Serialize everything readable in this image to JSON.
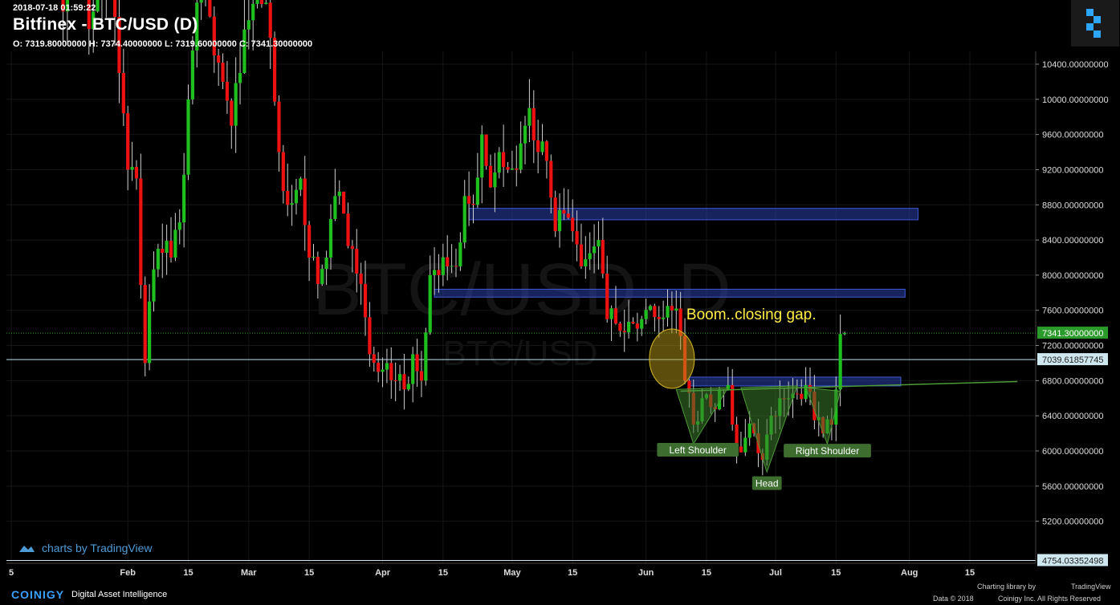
{
  "header": {
    "timestamp": "2018-07-18 01:59:22",
    "title": "Bitfinex - BTC/USD (D)",
    "ohlc": "O: 7319.80000000 H: 7374.40000000 L: 7319.60000000 C: 7341.30000000"
  },
  "watermark": {
    "big": "BTC/USD, D",
    "small": "BTC/USD"
  },
  "annotations": {
    "gap_text": "Boom..closing gap.",
    "left_shoulder": "Left Shoulder",
    "head": "Head",
    "right_shoulder": "Right Shoulder"
  },
  "price_labels": {
    "last": "7341.30000000",
    "line": "7039.61857745",
    "low": "4754.03352498"
  },
  "branding": {
    "tv": "charts by TradingView",
    "footer_brand": "COINIGY",
    "footer_tag": "Digital Asset Intelligence",
    "charting_library": "Charting library by",
    "tv_short": "TradingView",
    "copyright": "Data © 2018",
    "copyright2": "Coinigy Inc. All Rights Reserved"
  },
  "colors": {
    "up": "#1fbf1f",
    "down": "#ee1111",
    "zone": "#2a3fa8",
    "pattern": "#3a7a2a",
    "gap": "#b89a18",
    "last_label": "#2a9a2a"
  },
  "chart_data": {
    "type": "candlestick",
    "title": "Bitfinex - BTC/USD (D)",
    "y_ticks": [
      10400,
      10000,
      9600,
      9200,
      8800,
      8400,
      8000,
      7600,
      7200,
      6800,
      6400,
      6000,
      5600,
      5200
    ],
    "y_tick_labels": [
      "10400.00000000",
      "10000.00000000",
      "9600.00000000",
      "9200.00000000",
      "8800.00000000",
      "8400.00000000",
      "8000.00000000",
      "7600.00000000",
      "7200.00000000",
      "6800.00000000",
      "6400.00000000",
      "6000.00000000",
      "5600.00000000",
      "5200.00000000"
    ],
    "ylim": [
      4720,
      10540
    ],
    "x_ticks": [
      "2018-01-05",
      "2018-02-01",
      "2018-02-15",
      "2018-03-01",
      "2018-03-15",
      "2018-04-01",
      "2018-04-15",
      "2018-05-01",
      "2018-05-15",
      "2018-06-01",
      "2018-06-15",
      "2018-07-01",
      "2018-07-15",
      "2018-08-01",
      "2018-08-15"
    ],
    "x_tick_labels": [
      "5",
      "Feb",
      "15",
      "Mar",
      "15",
      "Apr",
      "15",
      "May",
      "15",
      "Jun",
      "15",
      "Jul",
      "15",
      "Aug",
      "15"
    ],
    "zones": [
      {
        "from": "2018-04-21",
        "to": "2018-08-03",
        "low": 8630,
        "high": 8760
      },
      {
        "from": "2018-04-13",
        "to": "2018-07-31",
        "low": 7750,
        "high": 7840
      },
      {
        "from": "2018-06-11",
        "to": "2018-07-30",
        "low": 6740,
        "high": 6840
      }
    ],
    "neckline": {
      "from": {
        "x": "2018-06-09",
        "y": 6680
      },
      "to": {
        "x": "2018-08-26",
        "y": 6790
      }
    },
    "gap_ellipse": {
      "x": "2018-06-07",
      "y": 7050
    },
    "last_price": 7341.3,
    "hline": 7039.61857745,
    "low_line": 4754.03352498,
    "pattern": {
      "left_shoulder": [
        {
          "x": "2018-06-08",
          "y": 6700
        },
        {
          "x": "2018-06-12",
          "y": 6080
        },
        {
          "x": "2018-06-20",
          "y": 6720
        }
      ],
      "head": [
        {
          "x": "2018-06-23",
          "y": 6720
        },
        {
          "x": "2018-06-29",
          "y": 5760
        },
        {
          "x": "2018-07-06",
          "y": 6740
        }
      ],
      "right_shoulder": [
        {
          "x": "2018-07-08",
          "y": 6720
        },
        {
          "x": "2018-07-13",
          "y": 6080
        },
        {
          "x": "2018-07-16",
          "y": 6680
        }
      ]
    },
    "anchors": [
      {
        "d": "2018-01-05",
        "c": 15000
      },
      {
        "d": "2018-01-07",
        "c": 16500
      },
      {
        "d": "2018-01-09",
        "c": 14900
      },
      {
        "d": "2018-01-12",
        "c": 13800
      },
      {
        "d": "2018-01-14",
        "c": 13600
      },
      {
        "d": "2018-01-17",
        "c": 11000
      },
      {
        "d": "2018-01-20",
        "c": 12800
      },
      {
        "d": "2018-01-23",
        "c": 10800
      },
      {
        "d": "2018-01-26",
        "c": 11200
      },
      {
        "d": "2018-01-28",
        "c": 11700
      },
      {
        "d": "2018-01-30",
        "c": 10300
      },
      {
        "d": "2018-02-01",
        "c": 9200
      },
      {
        "d": "2018-02-03",
        "c": 9100
      },
      {
        "d": "2018-02-05",
        "c": 7000
      },
      {
        "d": "2018-02-06",
        "c": 7700
      },
      {
        "d": "2018-02-08",
        "c": 8300
      },
      {
        "d": "2018-02-11",
        "c": 8200
      },
      {
        "d": "2018-02-13",
        "c": 8600
      },
      {
        "d": "2018-02-15",
        "c": 10000
      },
      {
        "d": "2018-02-17",
        "c": 11100
      },
      {
        "d": "2018-02-19",
        "c": 11200
      },
      {
        "d": "2018-02-21",
        "c": 10500
      },
      {
        "d": "2018-02-23",
        "c": 10200
      },
      {
        "d": "2018-02-25",
        "c": 9700
      },
      {
        "d": "2018-02-27",
        "c": 10300
      },
      {
        "d": "2018-03-01",
        "c": 10900
      },
      {
        "d": "2018-03-03",
        "c": 11400
      },
      {
        "d": "2018-03-06",
        "c": 10700
      },
      {
        "d": "2018-03-08",
        "c": 9400
      },
      {
        "d": "2018-03-10",
        "c": 8800
      },
      {
        "d": "2018-03-13",
        "c": 9100
      },
      {
        "d": "2018-03-15",
        "c": 8200
      },
      {
        "d": "2018-03-17",
        "c": 7900
      },
      {
        "d": "2018-03-19",
        "c": 8200
      },
      {
        "d": "2018-03-21",
        "c": 8900
      },
      {
        "d": "2018-03-23",
        "c": 8700
      },
      {
        "d": "2018-03-25",
        "c": 8300
      },
      {
        "d": "2018-03-27",
        "c": 7900
      },
      {
        "d": "2018-03-29",
        "c": 7100
      },
      {
        "d": "2018-03-31",
        "c": 6900
      },
      {
        "d": "2018-04-02",
        "c": 7000
      },
      {
        "d": "2018-04-04",
        "c": 6800
      },
      {
        "d": "2018-04-06",
        "c": 6700
      },
      {
        "d": "2018-04-08",
        "c": 7100
      },
      {
        "d": "2018-04-10",
        "c": 6800
      },
      {
        "d": "2018-04-12",
        "c": 8000
      },
      {
        "d": "2018-04-14",
        "c": 8000
      },
      {
        "d": "2018-04-16",
        "c": 8100
      },
      {
        "d": "2018-04-18",
        "c": 8100
      },
      {
        "d": "2018-04-20",
        "c": 8900
      },
      {
        "d": "2018-04-22",
        "c": 8800
      },
      {
        "d": "2018-04-24",
        "c": 9600
      },
      {
        "d": "2018-04-26",
        "c": 9000
      },
      {
        "d": "2018-04-28",
        "c": 9400
      },
      {
        "d": "2018-04-30",
        "c": 9200
      },
      {
        "d": "2018-05-02",
        "c": 9200
      },
      {
        "d": "2018-05-04",
        "c": 9700
      },
      {
        "d": "2018-05-05",
        "c": 9900
      },
      {
        "d": "2018-05-07",
        "c": 9400
      },
      {
        "d": "2018-05-09",
        "c": 9300
      },
      {
        "d": "2018-05-11",
        "c": 8500
      },
      {
        "d": "2018-05-13",
        "c": 8700
      },
      {
        "d": "2018-05-15",
        "c": 8500
      },
      {
        "d": "2018-05-17",
        "c": 8100
      },
      {
        "d": "2018-05-19",
        "c": 8250
      },
      {
        "d": "2018-05-21",
        "c": 8400
      },
      {
        "d": "2018-05-23",
        "c": 7500
      },
      {
        "d": "2018-05-25",
        "c": 7450
      },
      {
        "d": "2018-05-27",
        "c": 7350
      },
      {
        "d": "2018-05-29",
        "c": 7450
      },
      {
        "d": "2018-05-31",
        "c": 7500
      },
      {
        "d": "2018-06-02",
        "c": 7650
      },
      {
        "d": "2018-06-04",
        "c": 7500
      },
      {
        "d": "2018-06-06",
        "c": 7650
      },
      {
        "d": "2018-06-08",
        "c": 7620
      },
      {
        "d": "2018-06-10",
        "c": 6800
      },
      {
        "d": "2018-06-12",
        "c": 6300
      },
      {
        "d": "2018-06-14",
        "c": 6600
      },
      {
        "d": "2018-06-16",
        "c": 6500
      },
      {
        "d": "2018-06-18",
        "c": 6700
      },
      {
        "d": "2018-06-20",
        "c": 6750
      },
      {
        "d": "2018-06-22",
        "c": 6050
      },
      {
        "d": "2018-06-24",
        "c": 6150
      },
      {
        "d": "2018-06-26",
        "c": 6200
      },
      {
        "d": "2018-06-28",
        "c": 5900
      },
      {
        "d": "2018-06-30",
        "c": 6400
      },
      {
        "d": "2018-07-02",
        "c": 6600
      },
      {
        "d": "2018-07-04",
        "c": 6600
      },
      {
        "d": "2018-07-06",
        "c": 6650
      },
      {
        "d": "2018-07-08",
        "c": 6750
      },
      {
        "d": "2018-07-10",
        "c": 6350
      },
      {
        "d": "2018-07-12",
        "c": 6200
      },
      {
        "d": "2018-07-14",
        "c": 6300
      },
      {
        "d": "2018-07-15",
        "c": 6700
      },
      {
        "d": "2018-07-16",
        "c": 7330
      },
      {
        "d": "2018-07-17",
        "c": 7341.3
      }
    ]
  }
}
